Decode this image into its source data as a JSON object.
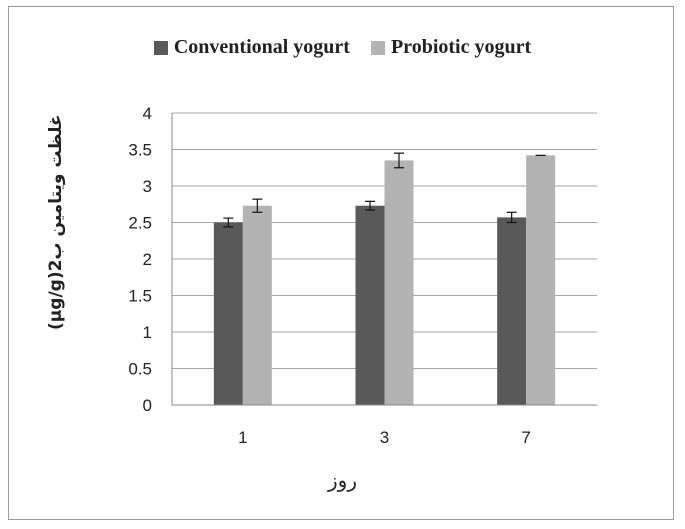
{
  "chart_data": {
    "type": "bar",
    "categories": [
      "1",
      "3",
      "7"
    ],
    "series": [
      {
        "name": "Conventional yogurt",
        "values": [
          2.5,
          2.73,
          2.57
        ],
        "errors": [
          0.06,
          0.06,
          0.07
        ],
        "color": "#595959"
      },
      {
        "name": "Probiotic yogurt",
        "values": [
          2.73,
          3.35,
          3.42
        ],
        "errors": [
          0.09,
          0.1,
          0.0
        ],
        "color": "#b3b3b3"
      }
    ],
    "title": "",
    "xlabel": "روز",
    "ylabel": "(µg/g)2غلظت ویتامین ب",
    "ylim": [
      0,
      4
    ],
    "yticks": [
      "0",
      "0.5",
      "1",
      "1.5",
      "2",
      "2.5",
      "3",
      "3.5",
      "4"
    ],
    "grid": true,
    "legend_position": "top",
    "gridline_color": "#a6a6a6"
  }
}
